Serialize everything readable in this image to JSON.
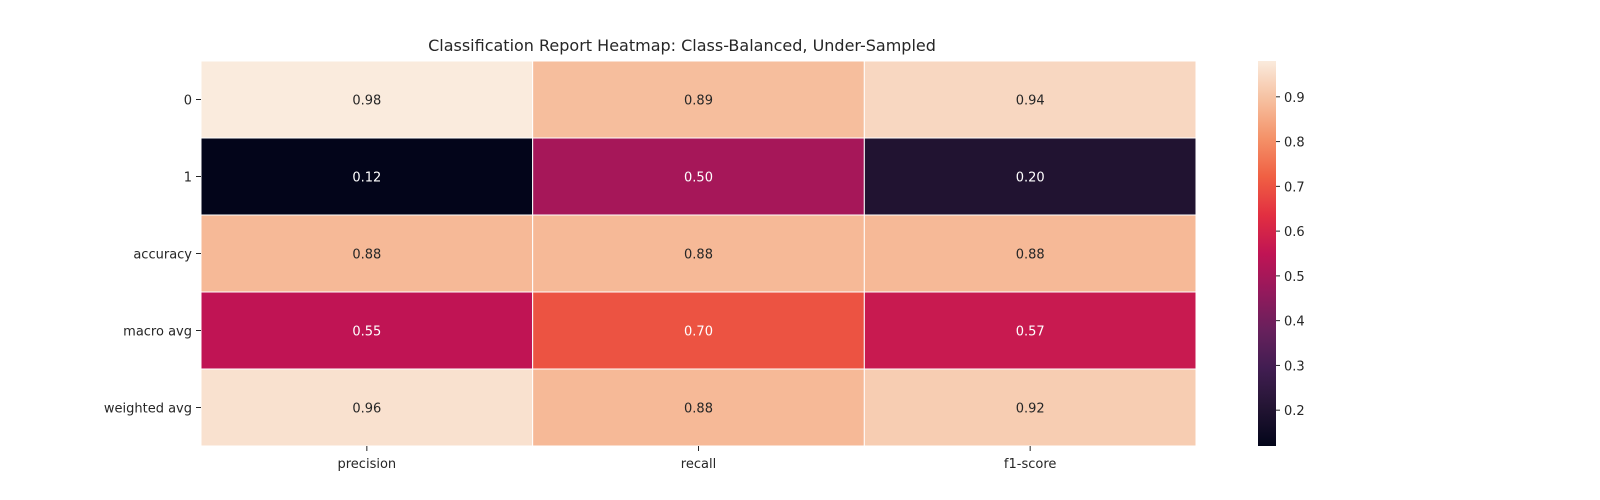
{
  "chart_data": {
    "type": "heatmap",
    "title": "Classification Report Heatmap: Class-Balanced, Under-Sampled",
    "xlabel": "",
    "ylabel": "",
    "columns": [
      "precision",
      "recall",
      "f1-score"
    ],
    "rows": [
      "0",
      "1",
      "accuracy",
      "macro avg",
      "weighted avg"
    ],
    "values": [
      [
        0.98,
        0.89,
        0.94
      ],
      [
        0.12,
        0.5,
        0.2
      ],
      [
        0.88,
        0.88,
        0.88
      ],
      [
        0.55,
        0.7,
        0.57
      ],
      [
        0.96,
        0.88,
        0.92
      ]
    ],
    "annotation_format": "0.00",
    "colormap": "rocket",
    "colorbar": {
      "range": [
        0.12,
        0.98
      ],
      "ticks": [
        0.2,
        0.3,
        0.4,
        0.5,
        0.6,
        0.7,
        0.8,
        0.9
      ],
      "tick_labels": [
        "0.2",
        "0.3",
        "0.4",
        "0.5",
        "0.6",
        "0.7",
        "0.8",
        "0.9"
      ]
    },
    "grid": false,
    "cell_separator_color": "#ffffff"
  }
}
